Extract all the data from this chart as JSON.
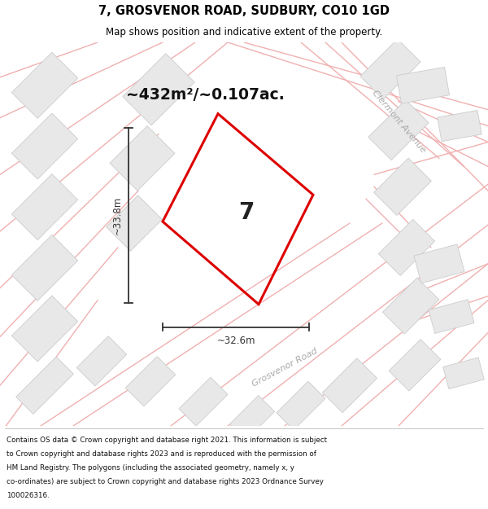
{
  "title_line1": "7, GROSVENOR ROAD, SUDBURY, CO10 1GD",
  "title_line2": "Map shows position and indicative extent of the property.",
  "area_text": "~432m²/~0.107ac.",
  "property_label": "7",
  "dim_height": "~33.8m",
  "dim_width": "~32.6m",
  "road_label1": "Clermont Avenue",
  "road_label2": "Grosvenor Road",
  "footer_lines": [
    "Contains OS data © Crown copyright and database right 2021. This information is subject",
    "to Crown copyright and database rights 2023 and is reproduced with the permission of",
    "HM Land Registry. The polygons (including the associated geometry, namely x, y",
    "co-ordinates) are subject to Crown copyright and database rights 2023 Ordnance Survey",
    "100026316."
  ],
  "map_bg": "#f5f5f5",
  "plot_color": "#dd0000",
  "road_color": "#f0b0b0",
  "building_fill": "#e8e8e8",
  "building_edge": "#cccccc",
  "dim_color": "#333333",
  "text_color": "#111111",
  "road_label_color": "#aaaaaa"
}
